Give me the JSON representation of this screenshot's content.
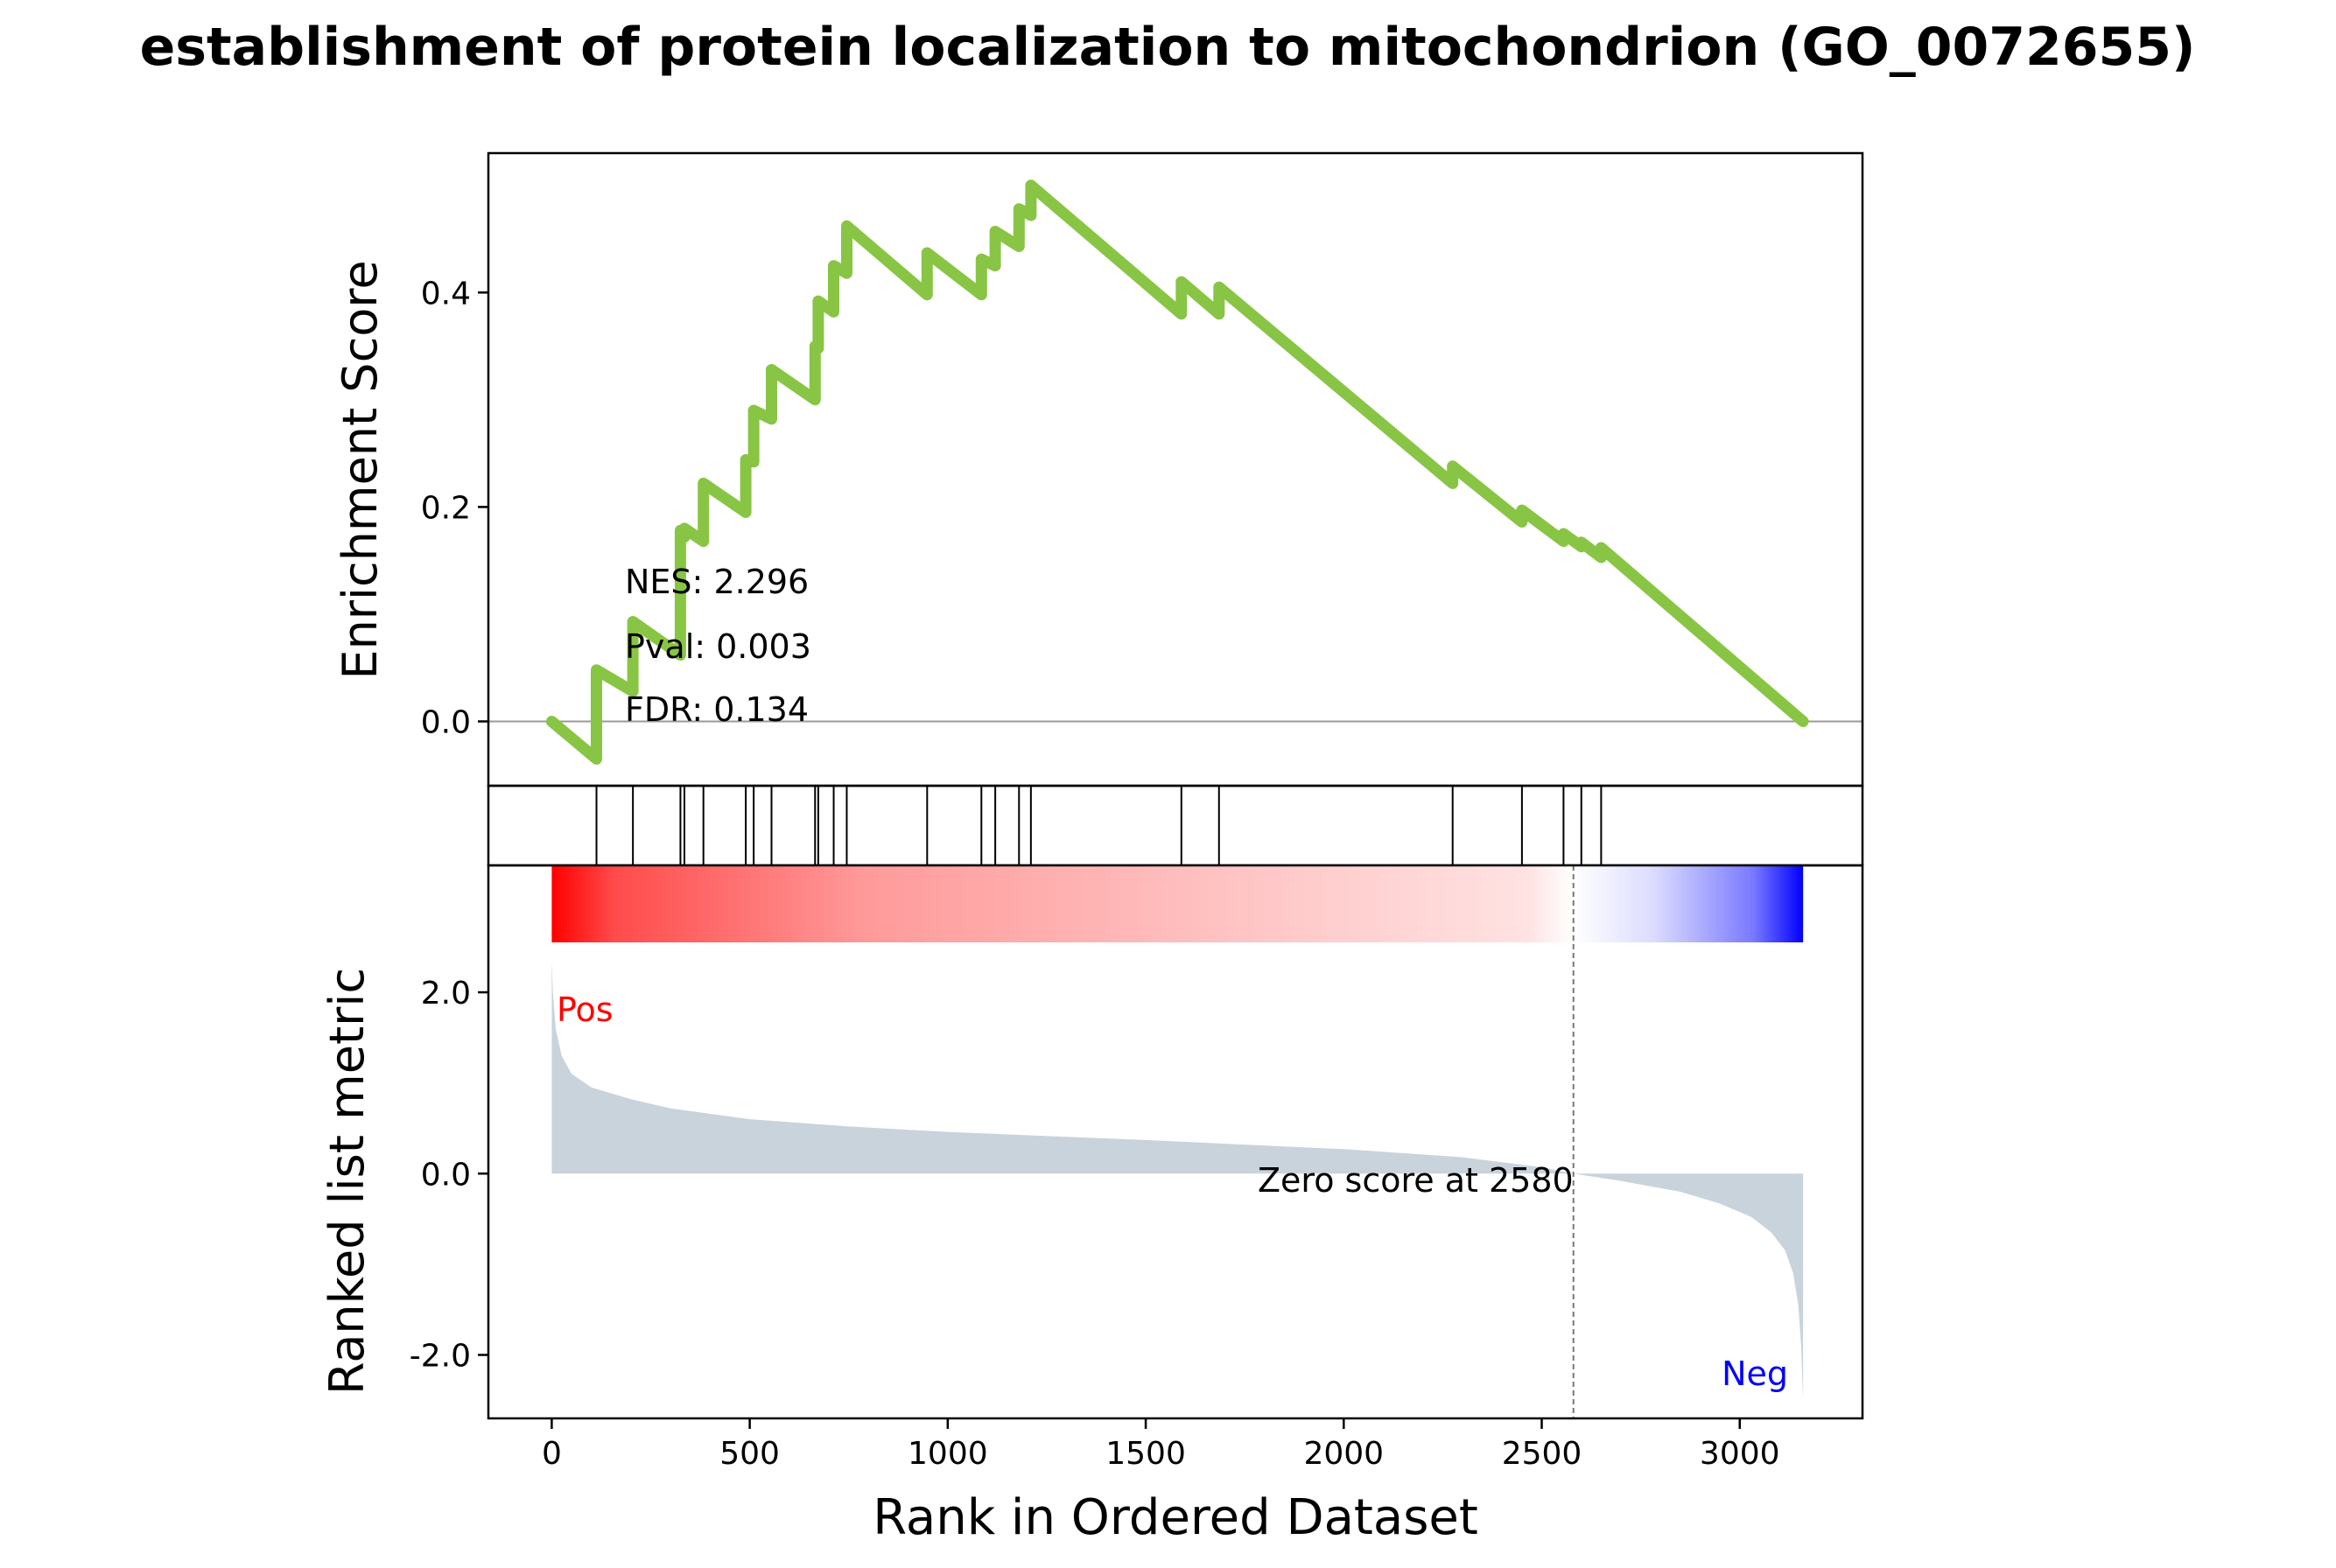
{
  "title": "establishment of protein localization to mitochondrion (GO_0072655)",
  "chart_data": {
    "type": "line",
    "title": "establishment of protein localization to mitochondrion (GO_0072655)",
    "xlabel": "Rank in Ordered Dataset",
    "x_ticks": [
      "0",
      "500",
      "1000",
      "1500",
      "2000",
      "2500",
      "3000"
    ],
    "xlim": [
      -160,
      3310
    ],
    "n_genes": 3160,
    "enrichment": {
      "ylabel": "Enrichment Score",
      "y_ticks": [
        "0.0",
        "0.2",
        "0.4"
      ],
      "ylim": [
        -0.06,
        0.53
      ],
      "line_color": "#88c544",
      "points": [
        [
          0,
          0.0
        ],
        [
          113,
          -0.035
        ],
        [
          113,
          0.048
        ],
        [
          205,
          0.028
        ],
        [
          205,
          0.093
        ],
        [
          325,
          0.062
        ],
        [
          325,
          0.178
        ],
        [
          335,
          0.172
        ],
        [
          335,
          0.18
        ],
        [
          383,
          0.168
        ],
        [
          383,
          0.222
        ],
        [
          490,
          0.195
        ],
        [
          490,
          0.244
        ],
        [
          510,
          0.242
        ],
        [
          510,
          0.29
        ],
        [
          555,
          0.282
        ],
        [
          555,
          0.328
        ],
        [
          665,
          0.3
        ],
        [
          665,
          0.35
        ],
        [
          673,
          0.348
        ],
        [
          673,
          0.392
        ],
        [
          712,
          0.382
        ],
        [
          712,
          0.425
        ],
        [
          745,
          0.418
        ],
        [
          745,
          0.462
        ],
        [
          948,
          0.398
        ],
        [
          948,
          0.437
        ],
        [
          1085,
          0.398
        ],
        [
          1085,
          0.431
        ],
        [
          1120,
          0.425
        ],
        [
          1120,
          0.457
        ],
        [
          1180,
          0.443
        ],
        [
          1180,
          0.478
        ],
        [
          1210,
          0.472
        ],
        [
          1210,
          0.5
        ],
        [
          1590,
          0.38
        ],
        [
          1590,
          0.41
        ],
        [
          1685,
          0.38
        ],
        [
          1685,
          0.405
        ],
        [
          2275,
          0.222
        ],
        [
          2275,
          0.238
        ],
        [
          2450,
          0.186
        ],
        [
          2450,
          0.197
        ],
        [
          2555,
          0.168
        ],
        [
          2555,
          0.175
        ],
        [
          2600,
          0.163
        ],
        [
          2600,
          0.167
        ],
        [
          2650,
          0.153
        ],
        [
          2650,
          0.162
        ],
        [
          3160,
          0.0
        ]
      ],
      "annotations": [
        "NES: 2.296",
        "Pval: 0.003",
        "FDR: 0.134"
      ]
    },
    "hits": [
      113,
      205,
      325,
      335,
      383,
      490,
      510,
      555,
      665,
      673,
      712,
      745,
      948,
      1085,
      1120,
      1180,
      1210,
      1590,
      1685,
      2275,
      2450,
      2555,
      2600,
      2650
    ],
    "ranked_metric": {
      "ylabel": "Ranked list metric",
      "y_ticks": [
        "2.0",
        "0.0",
        "-2.0"
      ],
      "y_tick_values": [
        2.0,
        0.0,
        -2.0
      ],
      "ylim": [
        -2.7,
        3.4
      ],
      "fill_color": "#c8d3dc",
      "curve": [
        [
          0,
          2.35
        ],
        [
          3,
          2.0
        ],
        [
          10,
          1.6
        ],
        [
          25,
          1.3
        ],
        [
          50,
          1.1
        ],
        [
          100,
          0.95
        ],
        [
          200,
          0.82
        ],
        [
          300,
          0.72
        ],
        [
          500,
          0.6
        ],
        [
          750,
          0.52
        ],
        [
          1000,
          0.46
        ],
        [
          1500,
          0.37
        ],
        [
          2000,
          0.27
        ],
        [
          2300,
          0.18
        ],
        [
          2500,
          0.07
        ],
        [
          2580,
          0.0
        ],
        [
          2700,
          -0.08
        ],
        [
          2850,
          -0.2
        ],
        [
          2950,
          -0.33
        ],
        [
          3030,
          -0.48
        ],
        [
          3080,
          -0.65
        ],
        [
          3115,
          -0.85
        ],
        [
          3135,
          -1.1
        ],
        [
          3148,
          -1.45
        ],
        [
          3155,
          -1.9
        ],
        [
          3160,
          -2.5
        ]
      ],
      "zero_cross": 2580,
      "zero_label": "Zero score at 2580",
      "pos_label": "Pos",
      "neg_label": "Neg",
      "pos_color": "#ff0000",
      "neg_color": "#0000ff"
    }
  }
}
